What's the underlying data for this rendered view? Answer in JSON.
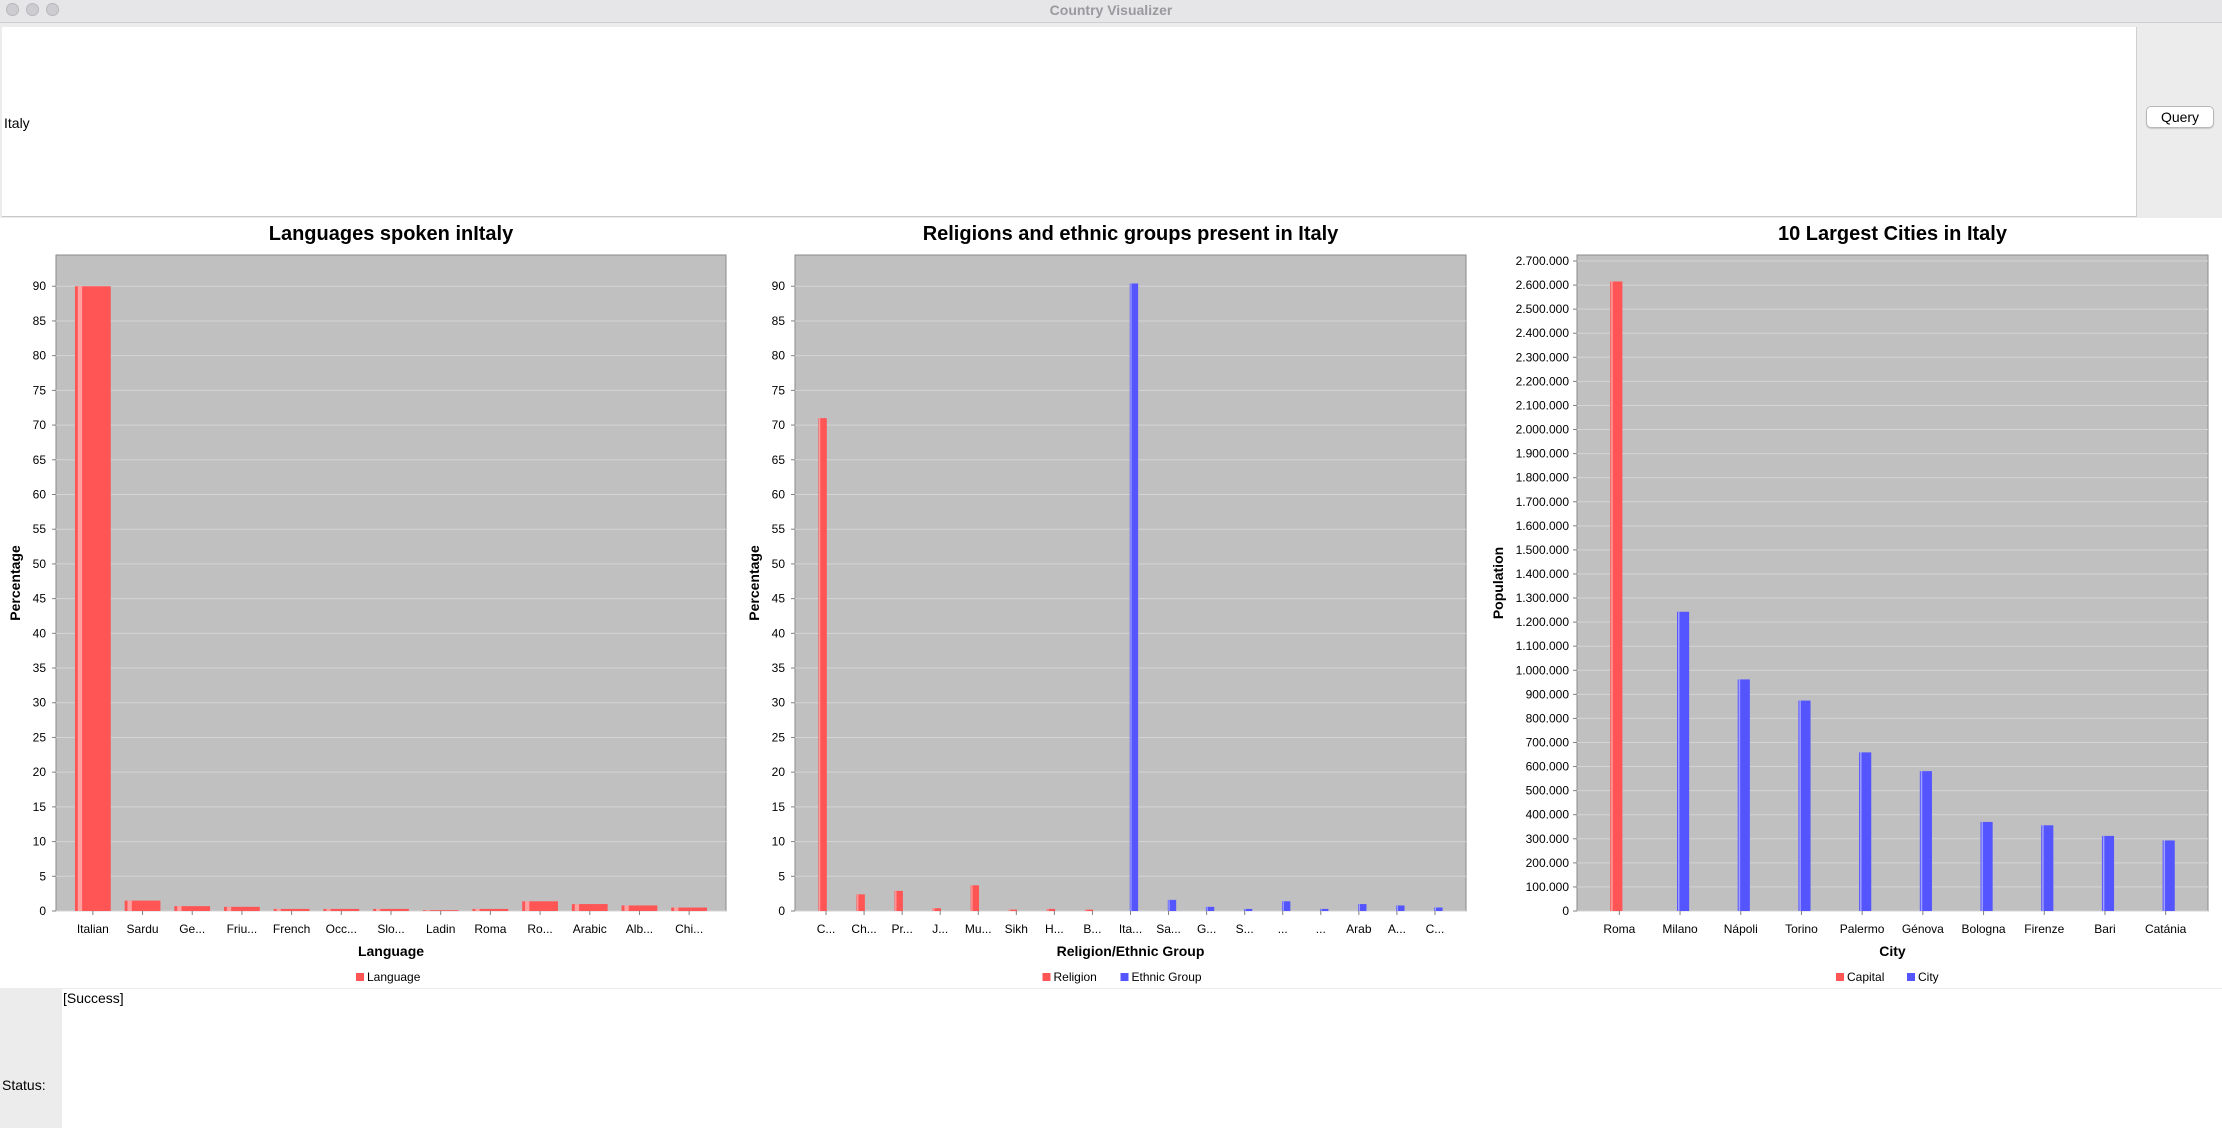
{
  "window": {
    "title": "Country Visualizer"
  },
  "query": {
    "text": "Italy",
    "button_label": "Query"
  },
  "status": {
    "label": "Status:",
    "message": "[Success]"
  },
  "colors": {
    "red": "#ff5555",
    "blue": "#5555ff",
    "plot_bg": "#c0c0c0",
    "grid": "#d4d4d4"
  },
  "chart_data": [
    {
      "type": "bar",
      "title": "Languages spoken inItaly",
      "xlabel": "Language",
      "ylabel": "Percentage",
      "ylim": [
        0,
        94.5
      ],
      "yticks": [
        0,
        5,
        10,
        15,
        20,
        25,
        30,
        35,
        40,
        45,
        50,
        55,
        60,
        65,
        70,
        75,
        80,
        85,
        90
      ],
      "categories": [
        "Italian",
        "Sardu",
        "Ge...",
        "Friu...",
        "French",
        "Occ...",
        "Slo...",
        "Ladin",
        "Roma",
        "Ro...",
        "Arabic",
        "Alb...",
        "Chi..."
      ],
      "series": [
        {
          "name": "Language",
          "color": "#ff5555",
          "values": [
            90,
            1.5,
            0.7,
            0.6,
            0.3,
            0.3,
            0.3,
            0.1,
            0.3,
            1.4,
            1.0,
            0.8,
            0.5
          ]
        }
      ],
      "legend": "bottom-center",
      "grid": true
    },
    {
      "type": "bar",
      "title": "Religions and ethnic groups present in Italy",
      "xlabel": "Religion/Ethnic Group",
      "ylabel": "Percentage",
      "ylim": [
        0,
        94.5
      ],
      "yticks": [
        0,
        5,
        10,
        15,
        20,
        25,
        30,
        35,
        40,
        45,
        50,
        55,
        60,
        65,
        70,
        75,
        80,
        85,
        90
      ],
      "categories": [
        "C...",
        "Ch...",
        "Pr...",
        "J...",
        "Mu...",
        "Sikh",
        "H...",
        "B...",
        "Ita...",
        "Sa...",
        "G...",
        "S...",
        "...",
        "...",
        "Arab",
        "A...",
        "C..."
      ],
      "series": [
        {
          "name": "Religion",
          "color": "#ff5555",
          "values": [
            71,
            2.4,
            2.9,
            0.4,
            3.7,
            0.2,
            0.3,
            0.2,
            0,
            0,
            0,
            0,
            0,
            0,
            0,
            0,
            0
          ]
        },
        {
          "name": "Ethnic Group",
          "color": "#5555ff",
          "values": [
            0,
            0,
            0,
            0,
            0,
            0,
            0,
            0,
            90.4,
            1.6,
            0.6,
            0.3,
            1.4,
            0.3,
            1.0,
            0.8,
            0.5
          ]
        }
      ],
      "legend": "bottom-center",
      "grid": true
    },
    {
      "type": "bar",
      "title": "10 Largest Cities in Italy",
      "xlabel": "City",
      "ylabel": "Population",
      "ylim": [
        0,
        2725000
      ],
      "yticks": [
        "0",
        "100.000",
        "200.000",
        "300.000",
        "400.000",
        "500.000",
        "600.000",
        "700.000",
        "800.000",
        "900.000",
        "1.000.000",
        "1.100.000",
        "1.200.000",
        "1.300.000",
        "1.400.000",
        "1.500.000",
        "1.600.000",
        "1.700.000",
        "1.800.000",
        "1.900.000",
        "2.000.000",
        "2.100.000",
        "2.200.000",
        "2.300.000",
        "2.400.000",
        "2.500.000",
        "2.600.000",
        "2.700.000"
      ],
      "categories": [
        "Roma",
        "Milano",
        "Nápoli",
        "Torino",
        "Palermo",
        "Génova",
        "Bologna",
        "Firenze",
        "Bari",
        "Catánia"
      ],
      "series": [
        {
          "name": "Capital",
          "color": "#ff5555",
          "values": [
            2615000,
            0,
            0,
            0,
            0,
            0,
            0,
            0,
            0,
            0
          ]
        },
        {
          "name": "City",
          "color": "#5555ff",
          "values": [
            0,
            1243000,
            962000,
            874000,
            659000,
            581000,
            370000,
            356000,
            312000,
            293000
          ]
        }
      ],
      "legend": "bottom-center",
      "grid": true
    }
  ]
}
